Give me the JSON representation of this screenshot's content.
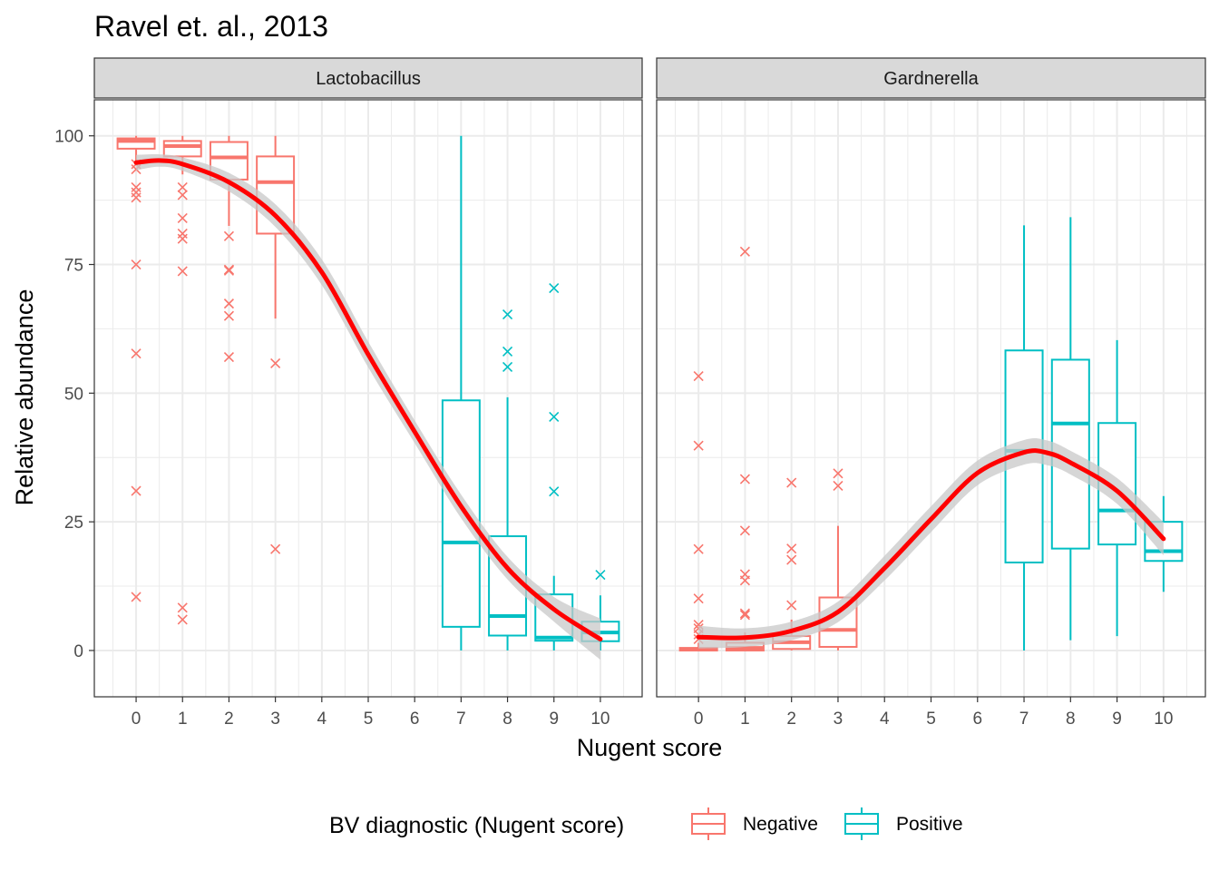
{
  "title": "Ravel et. al., 2013",
  "chart_data": {
    "type": "box",
    "title": "Ravel et. al., 2013",
    "xlabel": "Nugent score",
    "ylabel": "Relative abundance",
    "xlim": [
      -0.9,
      10.9
    ],
    "ylim": [
      -9,
      107
    ],
    "x_ticks": [
      "0",
      "1",
      "2",
      "3",
      "4",
      "5",
      "6",
      "7",
      "8",
      "9",
      "10"
    ],
    "y_ticks": [
      "0",
      "25",
      "50",
      "75",
      "100"
    ],
    "grid": true,
    "legend": {
      "title": "BV diagnostic (Nugent score)",
      "position": "bottom",
      "entries": [
        {
          "label": "Negative",
          "color": "#F8766D"
        },
        {
          "label": "Positive",
          "color": "#00BFC4"
        }
      ]
    },
    "colors": {
      "Negative": "#F8766D",
      "Positive": "#00BFC4",
      "smooth": "#FF0000",
      "ribbon": "#C8C8C8"
    },
    "panels": [
      {
        "strip": "Lactobacillus",
        "boxes": [
          {
            "x": 0,
            "group": "Negative",
            "min": 95,
            "q1": 97.5,
            "median": 99,
            "q3": 99.5,
            "max": 100,
            "outliers": [
              94.5,
              93.5,
              90,
              89,
              88,
              75,
              57.7,
              31,
              10.4
            ]
          },
          {
            "x": 1,
            "group": "Negative",
            "min": 92.5,
            "q1": 96,
            "median": 98,
            "q3": 99,
            "max": 100,
            "outliers": [
              90,
              88.5,
              84,
              81,
              80,
              73.7,
              8.3,
              6
            ]
          },
          {
            "x": 2,
            "group": "Negative",
            "min": 82.5,
            "q1": 91.5,
            "median": 95.8,
            "q3": 98.8,
            "max": 100,
            "outliers": [
              80.5,
              74,
              73.8,
              67.4,
              65,
              57
            ]
          },
          {
            "x": 3,
            "group": "Negative",
            "min": 64.5,
            "q1": 81,
            "median": 91,
            "q3": 96,
            "max": 100,
            "outliers": [
              55.8,
              19.7
            ]
          },
          {
            "x": 7,
            "group": "Positive",
            "min": 0,
            "q1": 4.6,
            "median": 21,
            "q3": 48.6,
            "max": 100,
            "outliers": []
          },
          {
            "x": 8,
            "group": "Positive",
            "min": 0,
            "q1": 2.9,
            "median": 6.7,
            "q3": 22.2,
            "max": 49.2,
            "outliers": [
              65.3,
              58.1,
              55.1
            ]
          },
          {
            "x": 9,
            "group": "Positive",
            "min": 0,
            "q1": 1.9,
            "median": 2.5,
            "q3": 10.9,
            "max": 14.5,
            "outliers": [
              70.4,
              45.4,
              30.9
            ]
          },
          {
            "x": 10,
            "group": "Positive",
            "min": 0,
            "q1": 1.8,
            "median": 3.5,
            "q3": 5.6,
            "max": 10.7,
            "outliers": [
              14.7
            ]
          }
        ],
        "smooth": {
          "x": [
            0,
            0.5,
            1,
            2,
            3,
            4,
            5,
            6,
            7,
            8,
            9,
            10
          ],
          "y": [
            94.8,
            95.2,
            94.5,
            91,
            84.5,
            73.5,
            57.5,
            42.5,
            28,
            16,
            8,
            2.2
          ],
          "se": [
            1.5,
            1.2,
            1.3,
            1.8,
            2.2,
            2.5,
            2.5,
            2.2,
            2.3,
            2.2,
            2.4,
            4
          ]
        }
      },
      {
        "strip": "Gardnerella",
        "boxes": [
          {
            "x": 0,
            "group": "Negative",
            "min": 0,
            "q1": 0,
            "median": 0.2,
            "q3": 0.5,
            "max": 1.5,
            "outliers": [
              53.3,
              39.8,
              19.7,
              10.1,
              5,
              4.3,
              3.1,
              2.2
            ]
          },
          {
            "x": 1,
            "group": "Negative",
            "min": 0,
            "q1": 0,
            "median": 0.5,
            "q3": 1.5,
            "max": 3.5,
            "outliers": [
              77.5,
              33.3,
              23.3,
              14.8,
              13.6,
              7.2,
              6.9
            ]
          },
          {
            "x": 2,
            "group": "Negative",
            "min": 0,
            "q1": 0.3,
            "median": 1.6,
            "q3": 2.8,
            "max": 6,
            "outliers": [
              32.6,
              19.8,
              17.6,
              8.8
            ]
          },
          {
            "x": 3,
            "group": "Negative",
            "min": 0,
            "q1": 0.7,
            "median": 4,
            "q3": 10.3,
            "max": 24.2,
            "outliers": [
              34.4,
              32
            ]
          },
          {
            "x": 7,
            "group": "Positive",
            "min": 0,
            "q1": 17.1,
            "median": 38.8,
            "q3": 58.3,
            "max": 82.6,
            "outliers": []
          },
          {
            "x": 8,
            "group": "Positive",
            "min": 2,
            "q1": 19.8,
            "median": 44.1,
            "q3": 56.5,
            "max": 84.2,
            "outliers": []
          },
          {
            "x": 9,
            "group": "Positive",
            "min": 2.8,
            "q1": 20.6,
            "median": 27.2,
            "q3": 44.2,
            "max": 60.3,
            "outliers": []
          },
          {
            "x": 10,
            "group": "Positive",
            "min": 11.4,
            "q1": 17.4,
            "median": 19.3,
            "q3": 25,
            "max": 30,
            "outliers": []
          }
        ],
        "smooth": {
          "x": [
            0,
            1,
            2,
            3,
            4,
            5,
            6,
            7,
            7.5,
            8,
            9,
            10
          ],
          "y": [
            2.6,
            2.5,
            3.8,
            7.5,
            16,
            25.5,
            34.5,
            38.5,
            38.4,
            36.5,
            31,
            21.7
          ],
          "se": [
            2.2,
            1.8,
            1.8,
            2,
            2.4,
            2.5,
            2.4,
            2.4,
            2.4,
            2.3,
            2.5,
            3.2
          ]
        }
      }
    ]
  }
}
